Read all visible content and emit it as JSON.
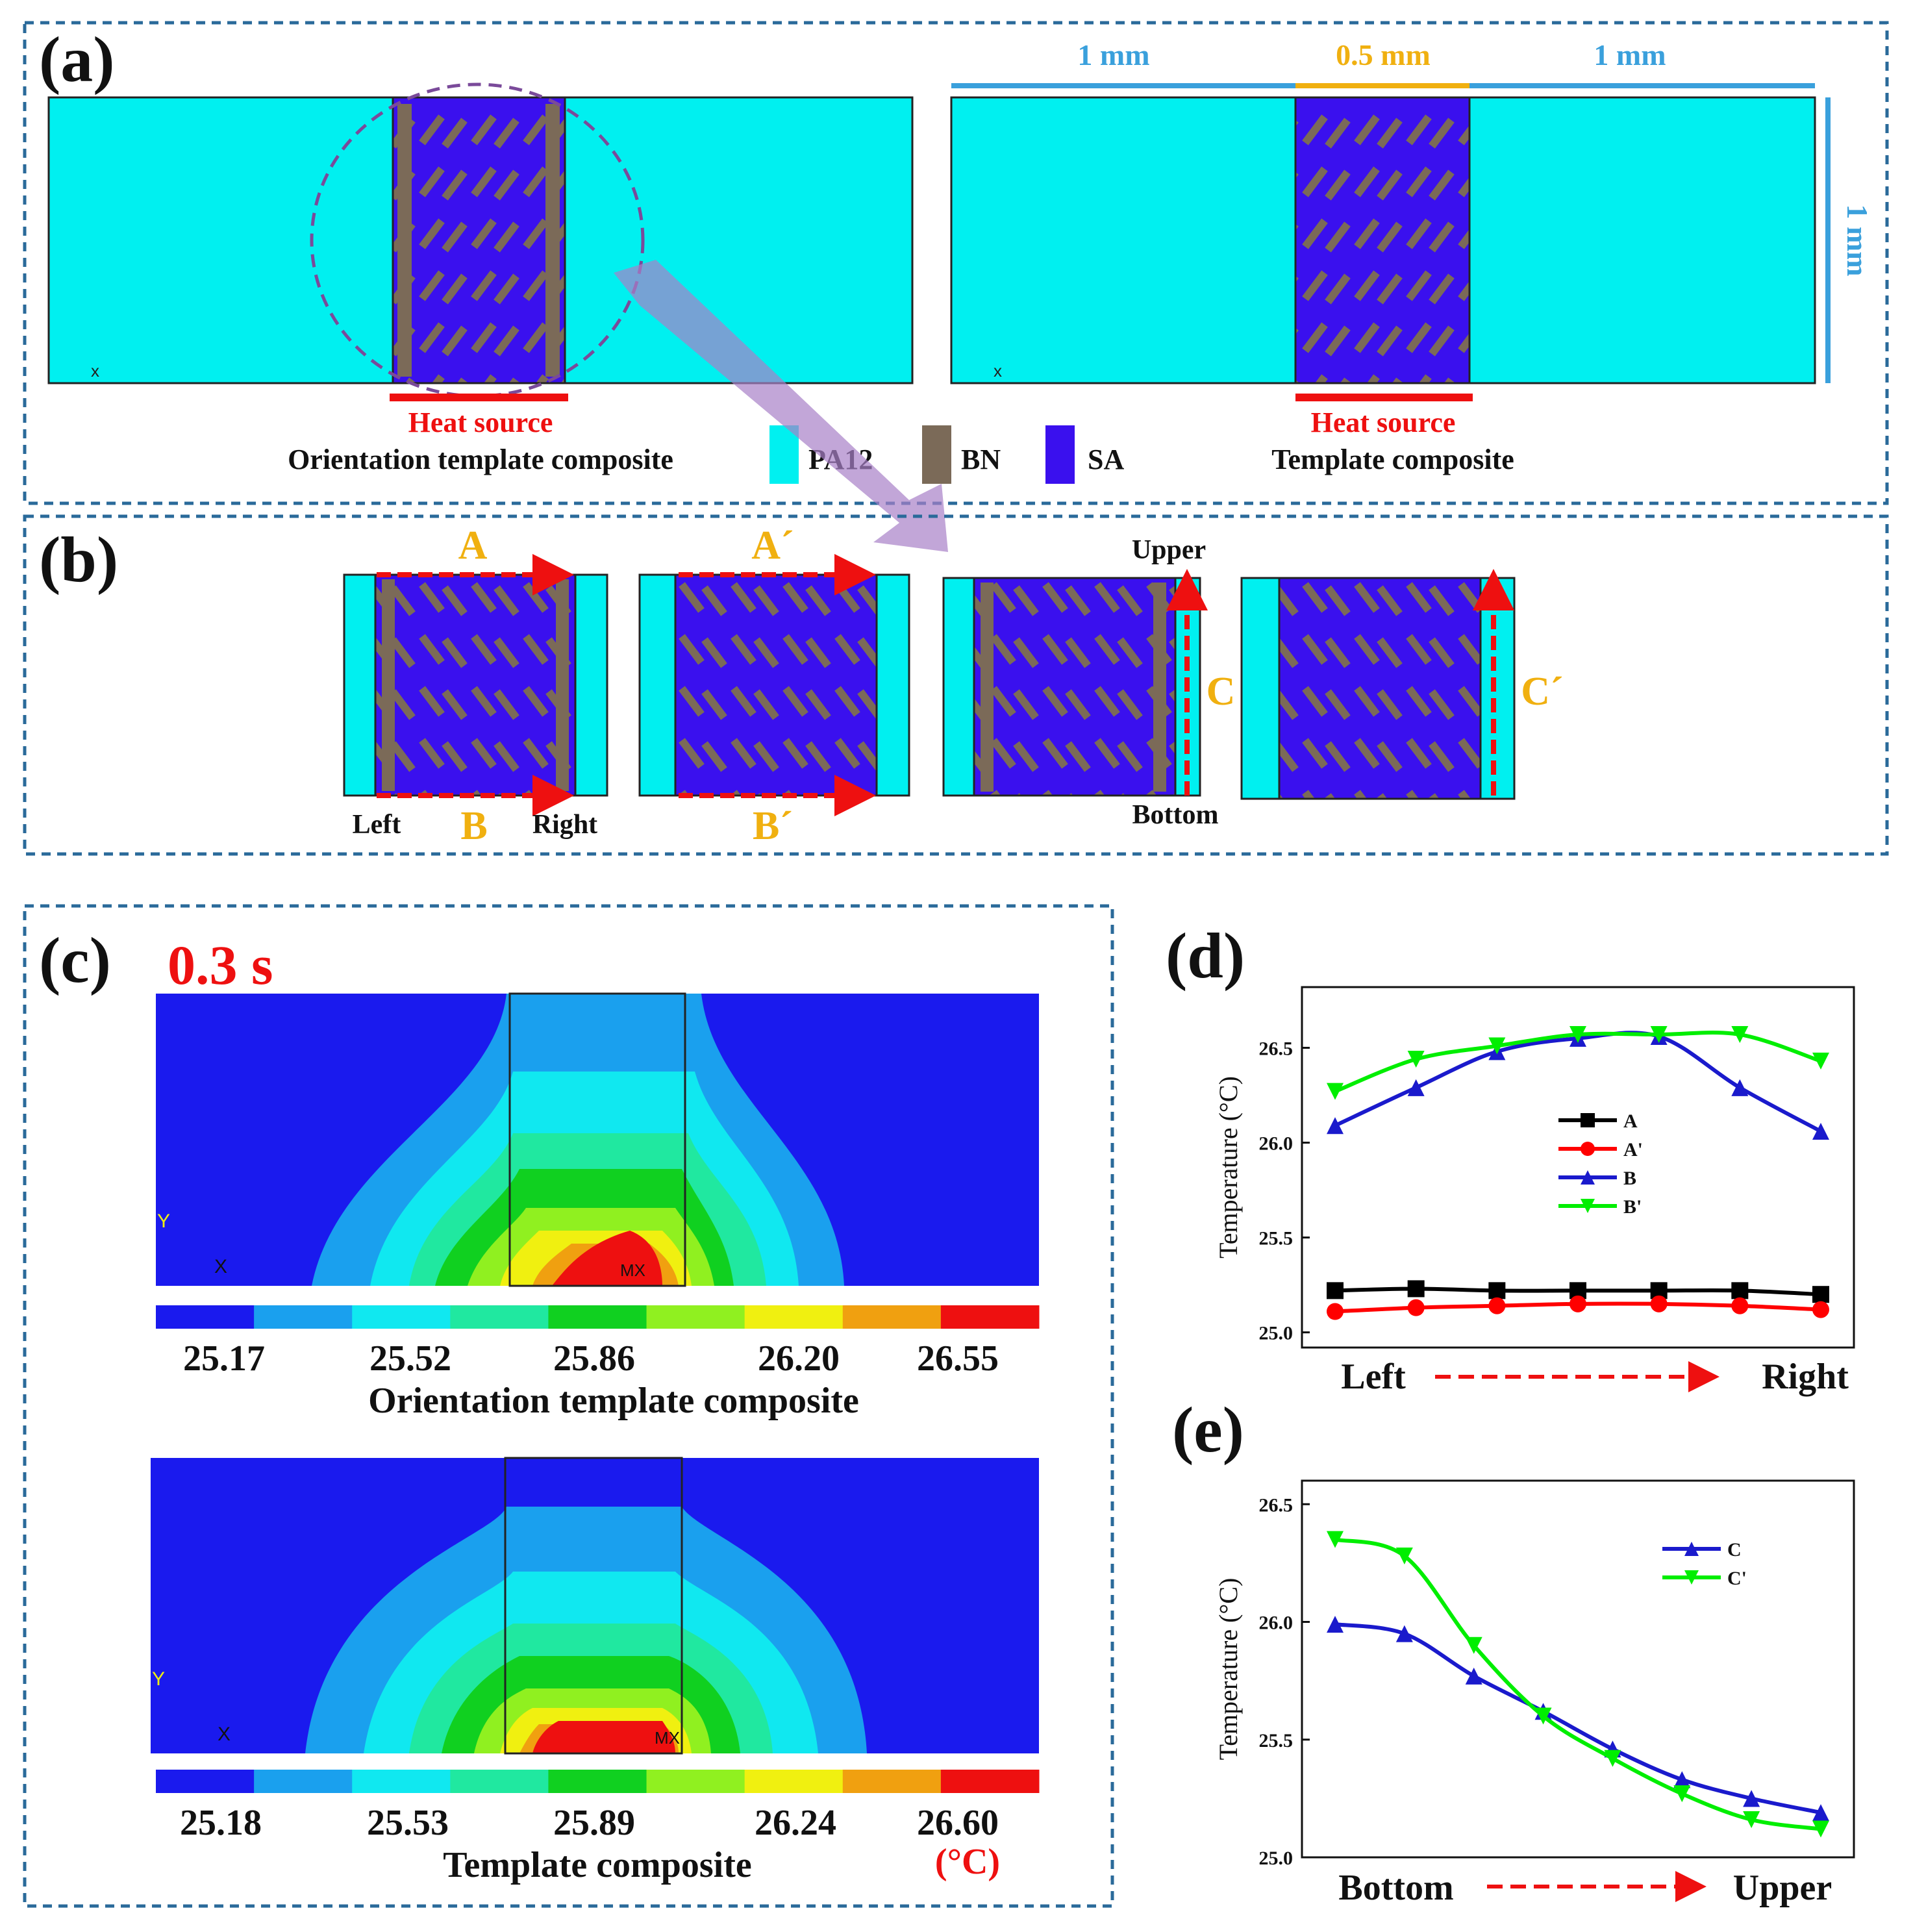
{
  "panel_labels": {
    "a": "(a)",
    "b": "(b)",
    "c": "(c)",
    "d": "(d)",
    "e": "(e)"
  },
  "panel_a": {
    "dim_left": "1 mm",
    "dim_mid": "0.5 mm",
    "dim_right": "1 mm",
    "dim_vertical": "1 mm",
    "heat_source": "Heat source",
    "left_caption": "Orientation template composite",
    "right_caption": "Template composite",
    "axis_x": "x",
    "legend": [
      {
        "label": "PA12",
        "color": "#00f0f0"
      },
      {
        "label": "BN",
        "color": "#7b6a58"
      },
      {
        "label": "SA",
        "color": "#3a10ee"
      }
    ]
  },
  "panel_b": {
    "path_A": "A",
    "path_A_prime": "A´",
    "path_B": "B",
    "path_B_prime": "B´",
    "path_C": "C",
    "path_C_prime": "C´",
    "left": "Left",
    "right": "Right",
    "upper": "Upper",
    "bottom": "Bottom"
  },
  "panel_c": {
    "time": "0.3 s",
    "axis_y": "Y",
    "axis_x": "X",
    "mx": "MX",
    "colors": [
      "#1a1aee",
      "#1aa0ee",
      "#10e8f0",
      "#20e8a0",
      "#10d020",
      "#90f020",
      "#f0f010",
      "#f0a010",
      "#ee1010"
    ],
    "top_ticks": [
      "25.17",
      "25.52",
      "25.86",
      "26.20",
      "26.55"
    ],
    "top_caption": "Orientation template composite",
    "bottom_ticks": [
      "25.18",
      "25.53",
      "25.89",
      "26.24",
      "26.60"
    ],
    "bottom_caption": "Template composite",
    "unit": "(°C)"
  },
  "panel_d_axis": {
    "left": "Left",
    "right": "Right"
  },
  "panel_e_axis": {
    "left": "Bottom",
    "right": "Upper"
  },
  "chart_data": [
    {
      "type": "line",
      "panel": "d",
      "ylabel": "Temperature (°C)",
      "ylim": [
        24.92,
        26.82
      ],
      "yticks": [
        25.0,
        25.5,
        26.0,
        26.5
      ],
      "xlabel": "",
      "series": [
        {
          "name": "A",
          "color": "#000000",
          "marker": "square",
          "x": [
            0,
            1,
            2,
            3,
            4,
            5,
            6
          ],
          "values": [
            25.22,
            25.23,
            25.22,
            25.22,
            25.22,
            25.22,
            25.2
          ]
        },
        {
          "name": "A'",
          "color": "#ff0000",
          "marker": "circle",
          "x": [
            0,
            1,
            2,
            3,
            4,
            5,
            6
          ],
          "values": [
            25.11,
            25.13,
            25.14,
            25.15,
            25.15,
            25.14,
            25.12
          ]
        },
        {
          "name": "B",
          "color": "#1a1acc",
          "marker": "triangle-up",
          "x": [
            0,
            1,
            2,
            3,
            4,
            5,
            6
          ],
          "values": [
            26.09,
            26.29,
            26.48,
            26.55,
            26.56,
            26.29,
            26.06
          ]
        },
        {
          "name": "B'",
          "color": "#00ee00",
          "marker": "triangle-down",
          "x": [
            0,
            1,
            2,
            3,
            4,
            5,
            6
          ],
          "values": [
            26.27,
            26.44,
            26.51,
            26.57,
            26.57,
            26.57,
            26.43
          ]
        }
      ]
    },
    {
      "type": "line",
      "panel": "e",
      "ylabel": "Temperature (°C)",
      "ylim": [
        25.0,
        26.6
      ],
      "yticks": [
        25.0,
        25.5,
        26.0,
        26.5
      ],
      "xlabel": "",
      "series": [
        {
          "name": "C",
          "color": "#1a1acc",
          "marker": "triangle-up",
          "x": [
            0,
            1,
            2,
            3,
            4,
            5,
            6,
            7
          ],
          "values": [
            25.99,
            25.95,
            25.77,
            25.62,
            25.46,
            25.33,
            25.25,
            25.19
          ]
        },
        {
          "name": "C'",
          "color": "#00ee00",
          "marker": "triangle-down",
          "x": [
            0,
            1,
            2,
            3,
            4,
            5,
            6,
            7
          ],
          "values": [
            26.35,
            26.28,
            25.9,
            25.6,
            25.42,
            25.27,
            25.16,
            25.12
          ]
        }
      ]
    }
  ]
}
